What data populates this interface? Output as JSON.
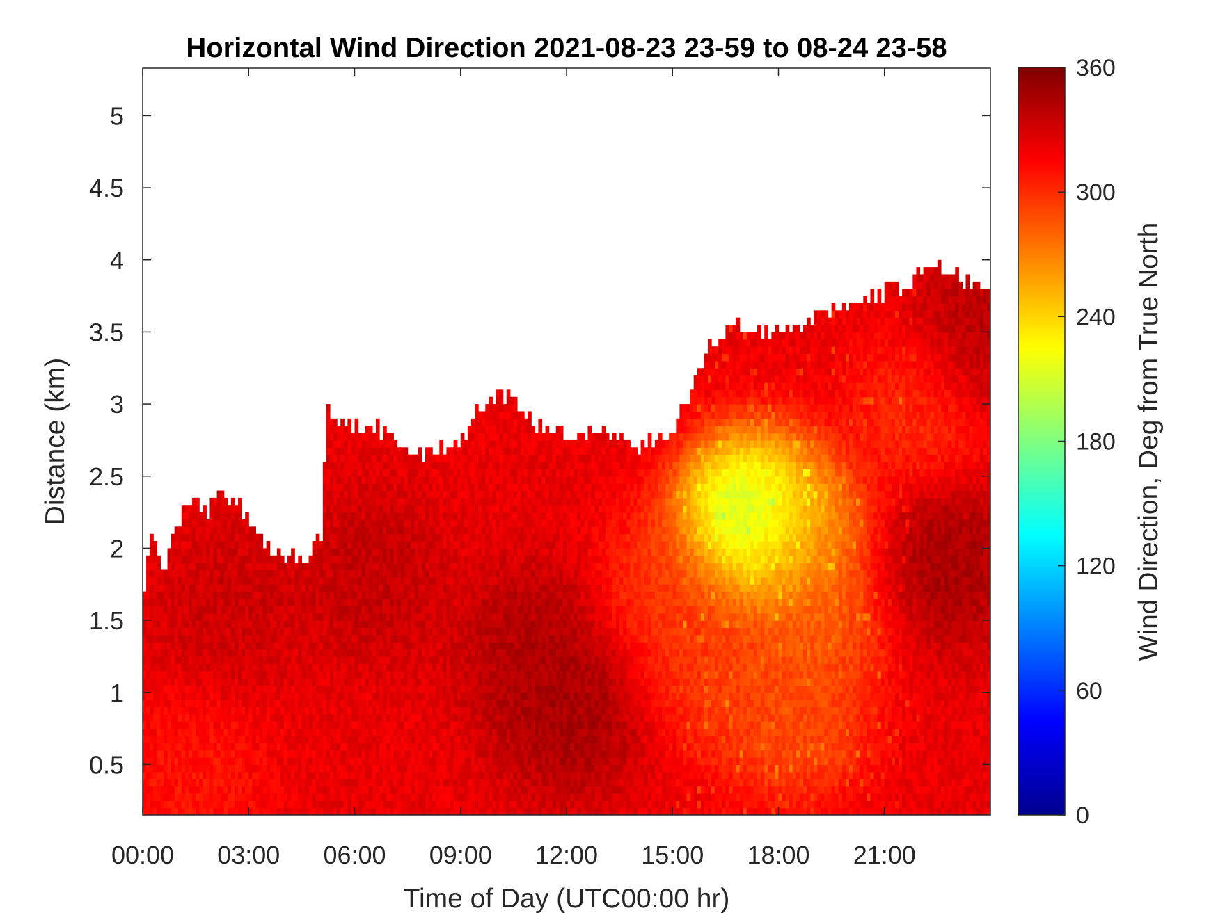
{
  "chart_data": {
    "type": "heatmap",
    "title": "Horizontal Wind Direction 2021-08-23 23-59 to 08-24 23-58",
    "xlabel": "Time of Day (UTC00:00 hr)",
    "ylabel": "Distance (km)",
    "x_ticks": [
      "00:00",
      "03:00",
      "06:00",
      "09:00",
      "12:00",
      "15:00",
      "18:00",
      "21:00"
    ],
    "x_tick_hours": [
      0,
      3,
      6,
      9,
      12,
      15,
      18,
      21
    ],
    "xlim_hours": [
      0,
      24
    ],
    "y_ticks": [
      "0.5",
      "1",
      "1.5",
      "2",
      "2.5",
      "3",
      "3.5",
      "4",
      "4.5",
      "5"
    ],
    "y_tick_values": [
      0.5,
      1,
      1.5,
      2,
      2.5,
      3,
      3.5,
      4,
      4.5,
      5
    ],
    "ylim": [
      0.15,
      5.33
    ],
    "colorbar": {
      "label": "Wind Direction, Deg from True North",
      "ticks": [
        "0",
        "60",
        "120",
        "180",
        "240",
        "300",
        "360"
      ],
      "tick_values": [
        0,
        60,
        120,
        180,
        240,
        300,
        360
      ],
      "range": [
        0,
        360
      ],
      "colormap": "jet"
    },
    "data_top_km": [
      [
        0.0,
        1.5
      ],
      [
        0.2,
        2.1
      ],
      [
        0.6,
        1.8
      ],
      [
        0.9,
        2.1
      ],
      [
        1.2,
        2.3
      ],
      [
        1.8,
        2.2
      ],
      [
        2.2,
        2.4
      ],
      [
        2.6,
        2.3
      ],
      [
        3.0,
        2.2
      ],
      [
        3.5,
        2.0
      ],
      [
        4.0,
        1.9
      ],
      [
        4.8,
        1.95
      ],
      [
        5.1,
        2.1
      ],
      [
        5.2,
        2.95
      ],
      [
        5.6,
        2.85
      ],
      [
        6.0,
        2.8
      ],
      [
        6.5,
        2.85
      ],
      [
        7.0,
        2.75
      ],
      [
        7.5,
        2.65
      ],
      [
        8.0,
        2.65
      ],
      [
        9.0,
        2.7
      ],
      [
        9.4,
        2.9
      ],
      [
        10.0,
        3.05
      ],
      [
        10.6,
        3.0
      ],
      [
        11.0,
        2.85
      ],
      [
        12.0,
        2.75
      ],
      [
        13.0,
        2.8
      ],
      [
        14.0,
        2.7
      ],
      [
        15.0,
        2.75
      ],
      [
        15.6,
        3.1
      ],
      [
        16.0,
        3.35
      ],
      [
        16.8,
        3.55
      ],
      [
        17.3,
        3.45
      ],
      [
        18.0,
        3.45
      ],
      [
        19.0,
        3.55
      ],
      [
        19.5,
        3.65
      ],
      [
        20.5,
        3.7
      ],
      [
        21.5,
        3.8
      ],
      [
        22.3,
        3.95
      ],
      [
        23.0,
        3.85
      ],
      [
        24.0,
        3.8
      ]
    ],
    "regions": [
      {
        "hour": 12.0,
        "km": 0.85,
        "deg": 352
      },
      {
        "hour": 11.0,
        "km": 1.3,
        "deg": 347
      },
      {
        "hour": 6.5,
        "km": 1.8,
        "deg": 340
      },
      {
        "hour": 2.5,
        "km": 1.6,
        "deg": 336
      },
      {
        "hour": 16.5,
        "km": 1.1,
        "deg": 288
      },
      {
        "hour": 18.5,
        "km": 0.8,
        "deg": 280
      },
      {
        "hour": 19.0,
        "km": 1.5,
        "deg": 276
      },
      {
        "hour": 15.0,
        "km": 1.7,
        "deg": 290
      },
      {
        "hour": 18.6,
        "km": 2.1,
        "deg": 258
      },
      {
        "hour": 17.2,
        "km": 2.2,
        "deg": 160
      },
      {
        "hour": 22.8,
        "km": 1.9,
        "deg": 352
      },
      {
        "hour": 23.5,
        "km": 3.4,
        "deg": 350
      },
      {
        "hour": 22.2,
        "km": 3.0,
        "deg": 290
      },
      {
        "hour": 1.5,
        "km": 0.4,
        "deg": 305
      }
    ]
  }
}
